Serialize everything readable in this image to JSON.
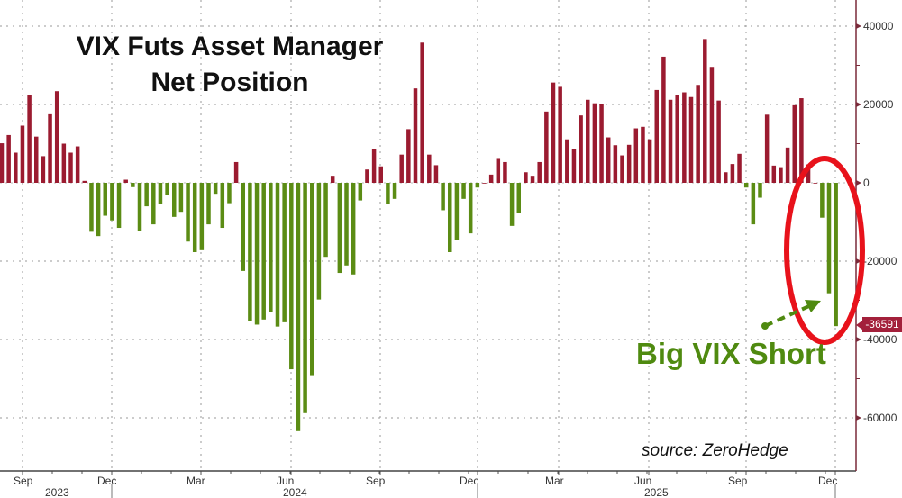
{
  "chart_data": {
    "type": "bar",
    "title": "VIX Futs Asset Manager Net Position",
    "title_lines": [
      "VIX Futs Asset Manager",
      "Net Position"
    ],
    "xlabel": "",
    "ylabel": "",
    "frequency": "weekly",
    "ylim": [
      -75000,
      47000
    ],
    "y_ticks": [
      40000,
      20000,
      0,
      -20000,
      -40000,
      -60000
    ],
    "y_tick_labels": [
      "40000",
      "20000",
      "0",
      "-20000",
      "-40000",
      "-60000"
    ],
    "x_month_labels": [
      "Sep",
      "Dec",
      "Mar",
      "Jun",
      "Sep",
      "Dec",
      "Mar",
      "Jun",
      "Sep",
      "Dec"
    ],
    "x_year_labels": [
      "2023",
      "2024",
      "2025"
    ],
    "grid": true,
    "y_axis_side": "right",
    "positive_color": "#9b1b30",
    "negative_color": "#5b8c14",
    "values": [
      10100,
      12200,
      7700,
      14600,
      22500,
      11800,
      6800,
      17500,
      23400,
      10000,
      7700,
      9300,
      500,
      -12500,
      -13600,
      -8400,
      -9600,
      -11500,
      800,
      -1100,
      -12300,
      -6000,
      -10600,
      -5400,
      -3100,
      -8700,
      -7400,
      -15000,
      -17700,
      -17200,
      -10600,
      -2800,
      -11500,
      -5200,
      5300,
      -22500,
      -35200,
      -36200,
      -34900,
      -32900,
      -36700,
      -35600,
      -47600,
      -63400,
      -58800,
      -49100,
      -29800,
      -18900,
      1800,
      -23000,
      -21100,
      -23400,
      -4500,
      3400,
      8700,
      4200,
      -5400,
      -4100,
      7200,
      13700,
      24100,
      35800,
      7200,
      4500,
      -7000,
      -17700,
      -14500,
      -4100,
      -12900,
      -1200,
      0,
      2100,
      6100,
      5300,
      -11000,
      -7700,
      2700,
      1800,
      5300,
      18200,
      25600,
      24500,
      11100,
      8700,
      17200,
      21200,
      20300,
      20100,
      11600,
      9600,
      7000,
      9700,
      13900,
      14300,
      11100,
      23700,
      32200,
      21200,
      22500,
      23100,
      21900,
      25000,
      36700,
      29600,
      21000,
      2700,
      4800,
      7400,
      -1200,
      -10600,
      -3800,
      17400,
      4400,
      4000,
      9000,
      19800,
      21600,
      4700,
      0,
      -8900,
      -28200,
      -36591
    ],
    "last_value_label": "-36591",
    "last_value_color": "#a3203b",
    "annotations": {
      "callout": "Big VIX Short",
      "callout_color": "#4f8a10",
      "highlight_ellipse_color": "#e8121b",
      "source": "source: ZeroHedge"
    }
  }
}
